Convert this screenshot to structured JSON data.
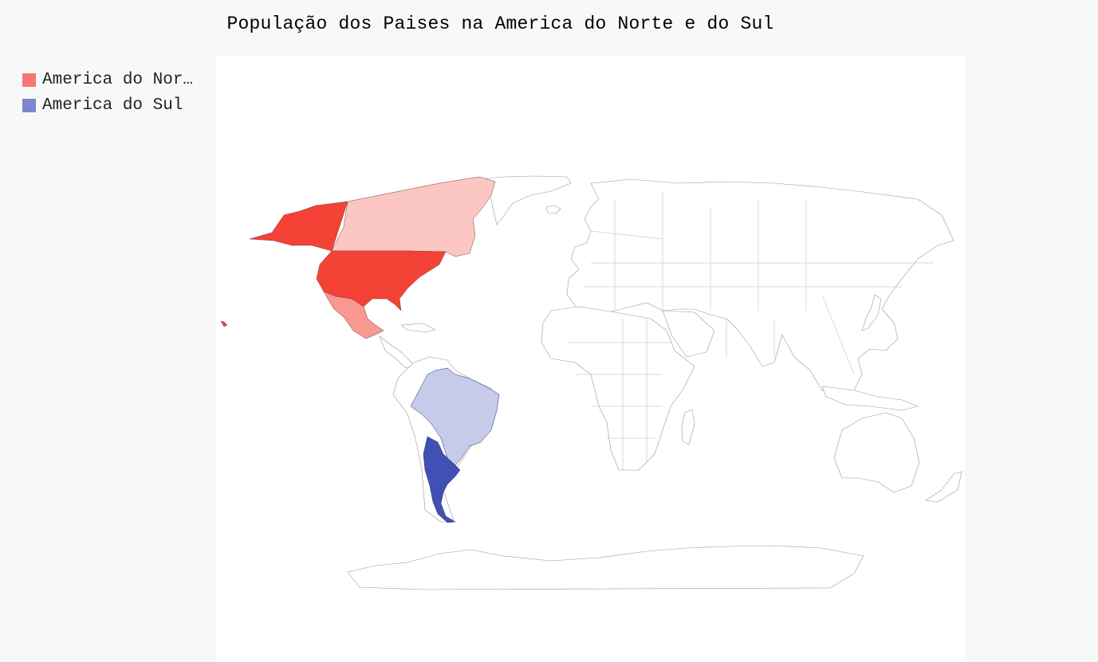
{
  "title": "População dos Paises na America do Norte e do Sul",
  "legend": [
    {
      "label": "America do Norte",
      "display": "America do Nor…",
      "color": "#f3786f"
    },
    {
      "label": "America do Sul",
      "display": "America do Sul",
      "color": "#7a86cf"
    }
  ],
  "chart_data": {
    "type": "choropleth",
    "region": "world",
    "series": [
      {
        "name": "America do Norte",
        "base_color": "#f44336",
        "countries": [
          {
            "code": "us",
            "shade": 1.0
          },
          {
            "code": "ca",
            "shade": 0.3
          },
          {
            "code": "mx",
            "shade": 0.55
          }
        ]
      },
      {
        "name": "America do Sul",
        "base_color": "#3f51b5",
        "countries": [
          {
            "code": "ar",
            "shade": 1.0
          },
          {
            "code": "br",
            "shade": 0.3
          }
        ]
      }
    ]
  }
}
